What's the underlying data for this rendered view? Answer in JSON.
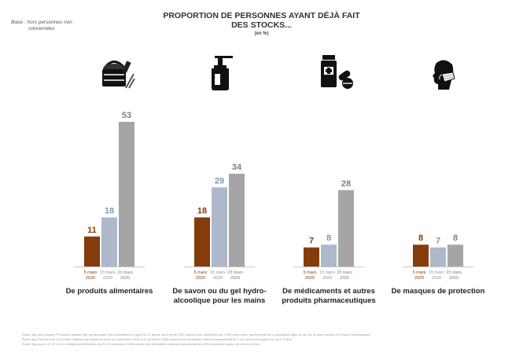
{
  "base_note": "Base : hors personnes non concernées",
  "title_line1": "PROPORTION DE PERSONNES AYANT DÉJÀ FAIT",
  "title_line2": "DES STOCKS...",
  "subtitle": "(en %)",
  "colors": {
    "5 mars 2020": "#843c0c",
    "15 mars 2020": "#adb9ca",
    "23 mars 2020": "#a5a5a5"
  },
  "chart_data": {
    "type": "bar",
    "title": "PROPORTION DE PERSONNES AYANT DÉJÀ FAIT DES STOCKS...",
    "subtitle": "(en %)",
    "ylim": [
      0,
      55
    ],
    "grid": false,
    "series_labels": [
      "5 mars 2020",
      "15 mars 2020",
      "23 mars 2020"
    ],
    "categories": [
      {
        "label_lines": [
          "De produits alimentaires"
        ],
        "values": [
          11,
          18,
          53
        ],
        "icon": "food-basket-icon"
      },
      {
        "label_lines": [
          "De savon ou du gel hydro-",
          "alcoolique pour les mains"
        ],
        "values": [
          18,
          29,
          34
        ],
        "icon": "soap-dispenser-icon"
      },
      {
        "label_lines": [
          "De médicaments et autres",
          "produits pharmaceutiques"
        ],
        "values": [
          7,
          8,
          28
        ],
        "icon": "medicine-icon"
      },
      {
        "label_lines": [
          "De masques de protection"
        ],
        "values": [
          8,
          7,
          8
        ],
        "icon": "mask-icon"
      }
    ]
  },
  "footnotes": [
    "Étude Ifop pour Eugène Promotion réalisée par questionnaire auto-administré en ligne du 21 janvier au 8 février 2020 auprès d’un échantillon de 2 000 personnes, représentatif de la population âgée de 18 ans et plus résidant en France métropolitaine",
    "Étude Ifop-Fiducial pour Sud Radio réalisée par téléphone entre le 8 décembre 2020 et le 18 février 2006 auprès d’un échantillon national représentatif de 1 112 personnes âgées de 18 à 79 ans",
    "Étude Ifop pour le G.T.F.N.S.O réalisée par téléphone les 3 et 5 septembre 1986 auprès d’un échantillon national représentatif de 1096 personnes âgées de 18 ans et plus"
  ]
}
